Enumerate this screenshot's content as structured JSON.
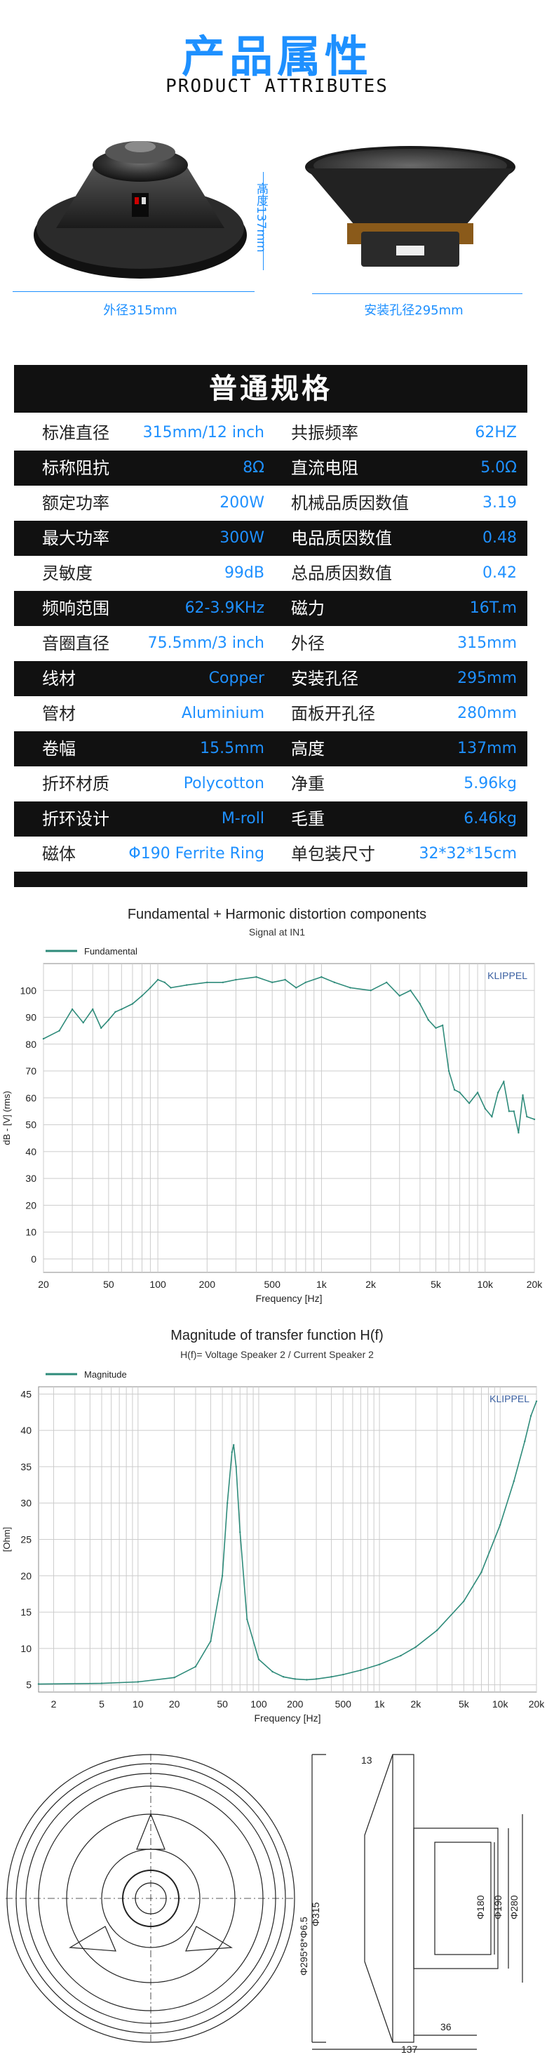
{
  "header": {
    "title_cn": "产品属性",
    "title_en": "PRODUCT ATTRIBUTES"
  },
  "photos": {
    "outer_diameter": "外径315mm",
    "height": "高度137mm",
    "mount_hole": "安装孔径295mm"
  },
  "specs": {
    "title": "普通规格",
    "rows": [
      {
        "k1": "标准直径",
        "v1": "315mm/12 inch",
        "k2": "共振频率",
        "v2": "62HZ"
      },
      {
        "k1": "标称阻抗",
        "v1": "8Ω",
        "k2": "直流电阻",
        "v2": "5.0Ω"
      },
      {
        "k1": "额定功率",
        "v1": "200W",
        "k2": "机械品质因数值",
        "v2": "3.19"
      },
      {
        "k1": "最大功率",
        "v1": "300W",
        "k2": "电品质因数值",
        "v2": "0.48"
      },
      {
        "k1": "灵敏度",
        "v1": "99dB",
        "k2": "总品质因数值",
        "v2": "0.42"
      },
      {
        "k1": "频响范围",
        "v1": "62-3.9KHz",
        "k2": "磁力",
        "v2": "16T.m"
      },
      {
        "k1": "音圈直径",
        "v1": "75.5mm/3 inch",
        "k2": "外径",
        "v2": "315mm"
      },
      {
        "k1": "线材",
        "v1": "Copper",
        "k2": "安装孔径",
        "v2": "295mm"
      },
      {
        "k1": "管材",
        "v1": "Aluminium",
        "k2": "面板开孔径",
        "v2": "280mm"
      },
      {
        "k1": "卷幅",
        "v1": "15.5mm",
        "k2": "高度",
        "v2": "137mm"
      },
      {
        "k1": "折环材质",
        "v1": "Polycotton",
        "k2": "净重",
        "v2": "5.96kg"
      },
      {
        "k1": "折环设计",
        "v1": "M-roll",
        "k2": "毛重",
        "v2": "6.46kg"
      },
      {
        "k1": "磁体",
        "v1": "Φ190   Ferrite Ring",
        "k2": "单包装尺寸",
        "v2": "32*32*15cm"
      }
    ]
  },
  "chart_data": [
    {
      "type": "line",
      "title": "Fundamental + Harmonic distortion components",
      "subtitle": "Signal at IN1",
      "legend": [
        "Fundamental"
      ],
      "brand": "KLIPPEL",
      "xlabel": "Frequency [Hz]",
      "ylabel": "dB - [V] (rms)",
      "xscale": "log",
      "xlim": [
        20,
        20000
      ],
      "ylim": [
        -5,
        110
      ],
      "xticks": [
        "20",
        "50",
        "100",
        "200",
        "500",
        "1k",
        "2k",
        "5k",
        "10k",
        "20k"
      ],
      "xtick_values": [
        20,
        50,
        100,
        200,
        500,
        1000,
        2000,
        5000,
        10000,
        20000
      ],
      "yticks": [
        0,
        10,
        20,
        30,
        40,
        50,
        60,
        70,
        80,
        90,
        100
      ],
      "series": [
        {
          "name": "Fundamental",
          "color": "#2e8b7a",
          "x": [
            20,
            25,
            30,
            35,
            40,
            45,
            50,
            55,
            60,
            70,
            80,
            90,
            100,
            110,
            120,
            150,
            200,
            250,
            300,
            400,
            500,
            600,
            700,
            800,
            1000,
            1200,
            1500,
            2000,
            2500,
            3000,
            3500,
            4000,
            4500,
            5000,
            5500,
            6000,
            6500,
            7000,
            8000,
            9000,
            10000,
            11000,
            12000,
            13000,
            14000,
            15000,
            16000,
            17000,
            18000,
            20000
          ],
          "y": [
            82,
            85,
            93,
            88,
            93,
            86,
            89,
            92,
            93,
            95,
            98,
            101,
            104,
            103,
            101,
            102,
            103,
            103,
            104,
            105,
            103,
            104,
            101,
            103,
            105,
            103,
            101,
            100,
            103,
            98,
            100,
            95,
            89,
            86,
            87,
            70,
            63,
            62,
            58,
            62,
            56,
            53,
            62,
            66,
            55,
            55,
            47,
            61,
            53,
            52
          ]
        }
      ]
    },
    {
      "type": "line",
      "title": "Magnitude of transfer function H(f)",
      "subtitle": "H(f)= Voltage Speaker 2 / Current Speaker 2",
      "legend": [
        "Magnitude"
      ],
      "brand": "KLIPPEL",
      "xlabel": "Frequency [Hz]",
      "ylabel": "[Ohm]",
      "xscale": "log",
      "xlim": [
        1.5,
        20000
      ],
      "ylim": [
        4,
        46
      ],
      "xticks": [
        "2",
        "5",
        "10",
        "20",
        "50",
        "100",
        "200",
        "500",
        "1k",
        "2k",
        "5k",
        "10k",
        "20k"
      ],
      "xtick_values": [
        2,
        5,
        10,
        20,
        50,
        100,
        200,
        500,
        1000,
        2000,
        5000,
        10000,
        20000
      ],
      "yticks": [
        5,
        10,
        15,
        20,
        25,
        30,
        35,
        40,
        45
      ],
      "series": [
        {
          "name": "Magnitude",
          "color": "#2e8b7a",
          "x": [
            1.5,
            5,
            10,
            20,
            30,
            40,
            50,
            55,
            60,
            62,
            65,
            70,
            80,
            100,
            130,
            160,
            200,
            250,
            300,
            400,
            500,
            700,
            1000,
            1500,
            2000,
            3000,
            5000,
            7000,
            10000,
            13000,
            16000,
            18000,
            20000
          ],
          "y": [
            5.1,
            5.2,
            5.4,
            6.0,
            7.5,
            11,
            20,
            30,
            37,
            38,
            35,
            26,
            14,
            8.5,
            6.8,
            6.1,
            5.8,
            5.7,
            5.8,
            6.1,
            6.4,
            7.0,
            7.8,
            9.0,
            10.2,
            12.5,
            16.5,
            20.5,
            27,
            33,
            38.5,
            42,
            44
          ]
        }
      ]
    }
  ],
  "drawing": {
    "dims": [
      "13",
      "Φ315",
      "Φ295*8*Φ6.5",
      "Φ180",
      "Φ190",
      "Φ280",
      "36",
      "137"
    ]
  }
}
